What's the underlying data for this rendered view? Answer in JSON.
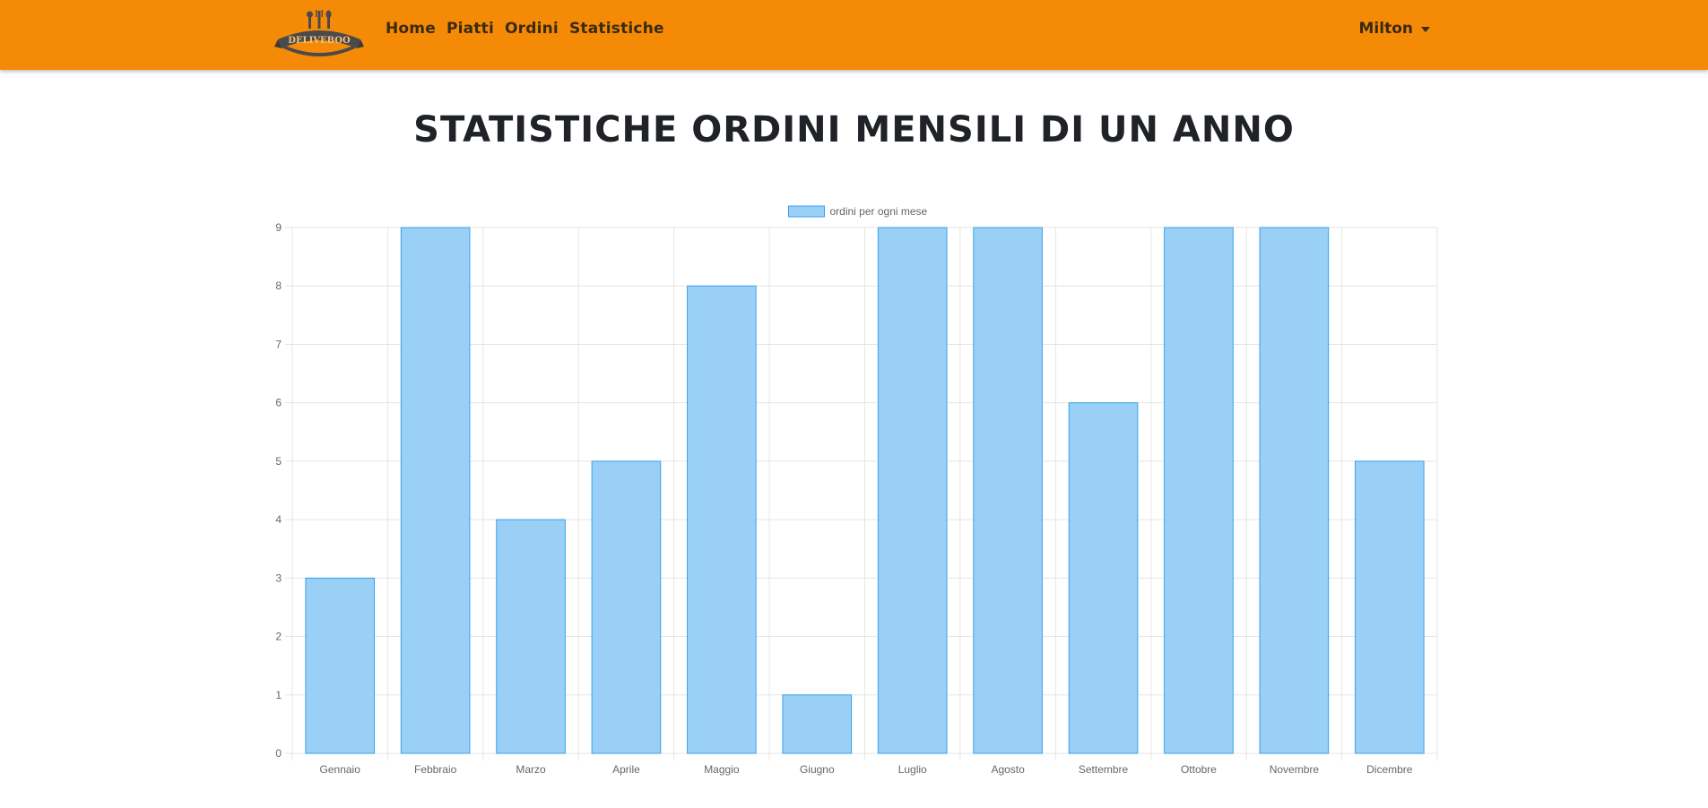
{
  "navbar": {
    "brand": "DELIVEBOO",
    "links": [
      "Home",
      "Piatti",
      "Ordini",
      "Statistiche"
    ],
    "user": "Milton",
    "colors": {
      "background": "#f58a07",
      "text": "#3b2a12"
    }
  },
  "page": {
    "title": "STATISTICHE ORDINI MENSILI DI UN ANNO"
  },
  "chart_data": {
    "type": "bar",
    "categories": [
      "Gennaio",
      "Febbraio",
      "Marzo",
      "Aprile",
      "Maggio",
      "Giugno",
      "Luglio",
      "Agosto",
      "Settembre",
      "Ottobre",
      "Novembre",
      "Dicembre"
    ],
    "series": [
      {
        "name": "ordini per ogni mese",
        "values": [
          3,
          9,
          4,
          5,
          8,
          1,
          9,
          9,
          6,
          9,
          9,
          5
        ]
      }
    ],
    "yticks": [
      "0",
      "1",
      "2",
      "3",
      "4",
      "5",
      "6",
      "7",
      "8",
      "9"
    ],
    "ylim": [
      0,
      9
    ],
    "grid": true,
    "legend_position": "top",
    "colors": {
      "bar_fill": "#9ad0f5",
      "bar_border": "#36a2eb",
      "grid": "#e5e5e5",
      "tick_text": "#666666"
    }
  }
}
